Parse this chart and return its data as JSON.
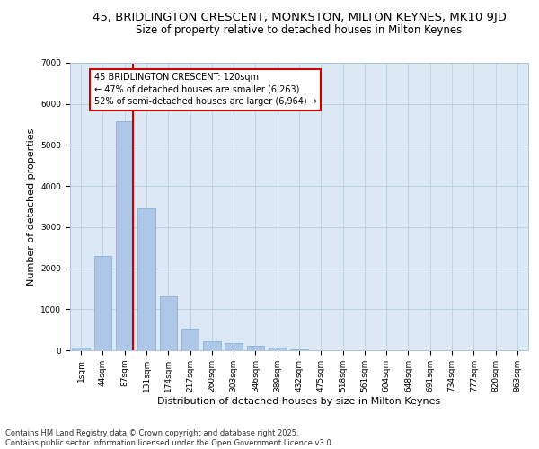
{
  "title_line1": "45, BRIDLINGTON CRESCENT, MONKSTON, MILTON KEYNES, MK10 9JD",
  "title_line2": "Size of property relative to detached houses in Milton Keynes",
  "xlabel": "Distribution of detached houses by size in Milton Keynes",
  "ylabel": "Number of detached properties",
  "categories": [
    "1sqm",
    "44sqm",
    "87sqm",
    "131sqm",
    "174sqm",
    "217sqm",
    "260sqm",
    "303sqm",
    "346sqm",
    "389sqm",
    "432sqm",
    "475sqm",
    "518sqm",
    "561sqm",
    "604sqm",
    "648sqm",
    "691sqm",
    "734sqm",
    "777sqm",
    "820sqm",
    "863sqm"
  ],
  "values": [
    75,
    2300,
    5580,
    3450,
    1320,
    530,
    215,
    185,
    100,
    60,
    30,
    0,
    0,
    0,
    0,
    0,
    0,
    0,
    0,
    0,
    0
  ],
  "bar_color": "#aec6e8",
  "bar_edge_color": "#7aadd4",
  "vline_color": "#cc0000",
  "annotation_text": "45 BRIDLINGTON CRESCENT: 120sqm\n← 47% of detached houses are smaller (6,263)\n52% of semi-detached houses are larger (6,964) →",
  "annotation_box_color": "#cc0000",
  "annotation_bg": "#ffffff",
  "ylim": [
    0,
    7000
  ],
  "yticks": [
    0,
    1000,
    2000,
    3000,
    4000,
    5000,
    6000,
    7000
  ],
  "plot_bg": "#dce9f5",
  "footer_line1": "Contains HM Land Registry data © Crown copyright and database right 2025.",
  "footer_line2": "Contains public sector information licensed under the Open Government Licence v3.0.",
  "title_fontsize": 9.5,
  "subtitle_fontsize": 8.5,
  "tick_fontsize": 6.5,
  "label_fontsize": 8,
  "annotation_fontsize": 7,
  "footer_fontsize": 6
}
